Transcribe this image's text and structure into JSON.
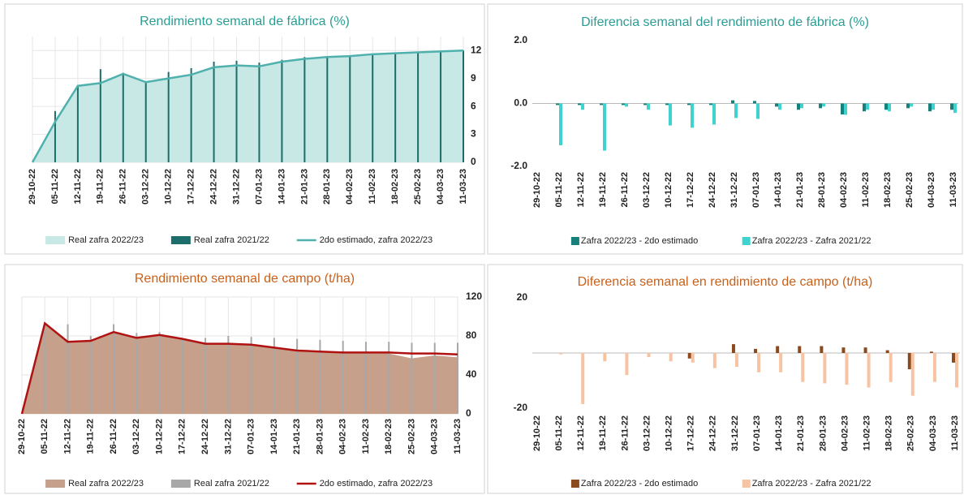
{
  "chart_data": [
    {
      "type": "combo",
      "title": "Rendimiento semanal de fábrica (%)",
      "categories": [
        "29-10-22",
        "05-11-22",
        "12-11-22",
        "19-11-22",
        "26-11-22",
        "03-12-22",
        "10-12-22",
        "17-12-22",
        "24-12-22",
        "31-12-22",
        "07-01-23",
        "14-01-23",
        "21-01-23",
        "28-01-23",
        "04-02-23",
        "11-02-23",
        "18-02-23",
        "25-02-23",
        "04-03-23",
        "11-03-23"
      ],
      "series": [
        {
          "name": "Real zafra 2022/23",
          "kind": "area",
          "color": "#c8e8e5",
          "values": [
            0,
            4.35,
            8.2,
            8.5,
            9.5,
            8.6,
            9.0,
            9.4,
            10.2,
            10.4,
            10.3,
            10.8,
            11.1,
            11.3,
            11.4,
            11.6,
            11.7,
            11.8,
            11.9,
            12.0
          ]
        },
        {
          "name": "Real zafra 2021/22",
          "kind": "bar",
          "color": "#1d6e6a",
          "values": [
            0,
            5.5,
            8.3,
            10.0,
            9.6,
            8.7,
            9.7,
            10.1,
            10.8,
            10.9,
            10.7,
            11.0,
            11.3,
            11.4,
            11.5,
            11.6,
            11.7,
            11.8,
            11.9,
            12.0
          ]
        },
        {
          "name": "2do estimado, zafra 2022/23",
          "kind": "line",
          "color": "#4fb1ad",
          "values": [
            0,
            4.35,
            8.2,
            8.5,
            9.5,
            8.6,
            9.0,
            9.4,
            10.2,
            10.4,
            10.3,
            10.8,
            11.1,
            11.3,
            11.4,
            11.6,
            11.7,
            11.8,
            11.9,
            12.0
          ]
        }
      ],
      "ylim": [
        0,
        13.5
      ],
      "yticks": [
        0,
        3,
        6,
        9,
        12
      ],
      "grid": true
    },
    {
      "type": "bar",
      "title": "Diferencia semanal del rendimiento de fábrica (%)",
      "categories": [
        "29-10-22",
        "05-11-22",
        "12-11-22",
        "19-11-22",
        "26-11-22",
        "03-12-22",
        "10-12-22",
        "17-12-22",
        "24-12-22",
        "31-12-22",
        "07-01-23",
        "14-01-23",
        "21-01-23",
        "28-01-23",
        "04-02-23",
        "11-02-23",
        "18-02-23",
        "25-02-23",
        "04-03-23",
        "11-03-23"
      ],
      "series": [
        {
          "name": "Zafra 2022/23 - 2do estimado",
          "color": "#17807b",
          "values": [
            0,
            -0.05,
            -0.05,
            -0.05,
            -0.05,
            -0.05,
            -0.05,
            -0.05,
            -0.05,
            0.1,
            0.08,
            -0.1,
            -0.2,
            -0.15,
            -0.35,
            -0.25,
            -0.2,
            -0.15,
            -0.25,
            -0.2
          ]
        },
        {
          "name": "Zafra 2022/23 - Zafra 2021/22",
          "color": "#3fd3cf",
          "values": [
            0,
            -1.33,
            -0.2,
            -1.5,
            -0.1,
            -0.2,
            -0.7,
            -0.77,
            -0.67,
            -0.46,
            -0.49,
            -0.2,
            -0.15,
            -0.1,
            -0.36,
            -0.2,
            -0.25,
            -0.1,
            -0.2,
            -0.3
          ]
        }
      ],
      "ylim": [
        -2,
        2
      ],
      "yticks": [
        {
          "value": 2,
          "label": "2.0"
        },
        {
          "value": 0,
          "label": "0.0"
        },
        {
          "value": -2,
          "label": "-2.0"
        }
      ],
      "grid": false
    },
    {
      "type": "combo",
      "title": "Rendimiento semanal de campo (t/ha)",
      "categories": [
        "29-10-22",
        "05-11-22",
        "12-11-22",
        "19-11-22",
        "26-11-22",
        "03-12-22",
        "10-12-22",
        "17-12-22",
        "24-12-22",
        "31-12-22",
        "07-01-23",
        "14-01-23",
        "21-01-23",
        "28-01-23",
        "04-02-23",
        "11-02-23",
        "18-02-23",
        "25-02-23",
        "04-03-23",
        "11-03-23"
      ],
      "series": [
        {
          "name": "Real zafra 2022/23",
          "kind": "area",
          "color": "#c6a08a",
          "values": [
            0,
            93,
            74,
            75,
            84,
            78,
            81,
            76,
            72,
            72,
            71,
            69,
            65,
            64,
            63,
            63,
            62,
            57,
            60,
            58
          ]
        },
        {
          "name": "Real zafra 2021/22",
          "kind": "bar",
          "color": "#a8a8a8",
          "values": [
            0,
            92,
            92,
            80,
            92,
            83,
            84,
            78,
            78,
            80,
            79,
            78,
            77,
            76,
            75,
            74,
            74,
            73,
            73,
            73
          ]
        },
        {
          "name": "2do estimado, zafra 2022/23",
          "kind": "line",
          "color": "#b01212",
          "values": [
            0,
            93,
            74,
            75,
            84,
            78,
            81,
            77,
            72,
            72,
            71,
            68,
            65,
            64,
            63,
            63,
            63,
            62,
            62,
            61
          ]
        }
      ],
      "ylim": [
        0,
        120
      ],
      "yticks": [
        0,
        40,
        80,
        120
      ],
      "grid": true
    },
    {
      "type": "bar",
      "title": "Diferencia semanal en rendimiento de campo (t/ha)",
      "categories": [
        "29-10-22",
        "05-11-22",
        "12-11-22",
        "19-11-22",
        "26-11-22",
        "03-12-22",
        "10-12-22",
        "17-12-22",
        "24-12-22",
        "31-12-22",
        "07-01-23",
        "14-01-23",
        "21-01-23",
        "28-01-23",
        "04-02-23",
        "11-02-23",
        "18-02-23",
        "25-02-23",
        "04-03-23",
        "11-03-23"
      ],
      "series": [
        {
          "name": "Zafra 2022/23 - 2do estimado",
          "color": "#8b4a1e",
          "values": [
            0,
            0,
            0,
            0,
            0,
            0,
            0,
            -2,
            0,
            3.2,
            1.5,
            2.5,
            2.5,
            2.5,
            2,
            2,
            1,
            -5.9,
            0.5,
            -3.5
          ]
        },
        {
          "name": "Zafra 2022/23 - Zafra 2021/22",
          "color": "#f8c3a3",
          "values": [
            0,
            -0.5,
            -18.5,
            -3,
            -8,
            -1.5,
            -3,
            -3.5,
            -5.5,
            -5,
            -7,
            -7,
            -10.5,
            -11,
            -11.5,
            -12.5,
            -10.5,
            -15.5,
            -10.5,
            -12.5
          ]
        }
      ],
      "ylim": [
        -20,
        20
      ],
      "yticks": [
        -20,
        20
      ],
      "grid": false
    }
  ]
}
